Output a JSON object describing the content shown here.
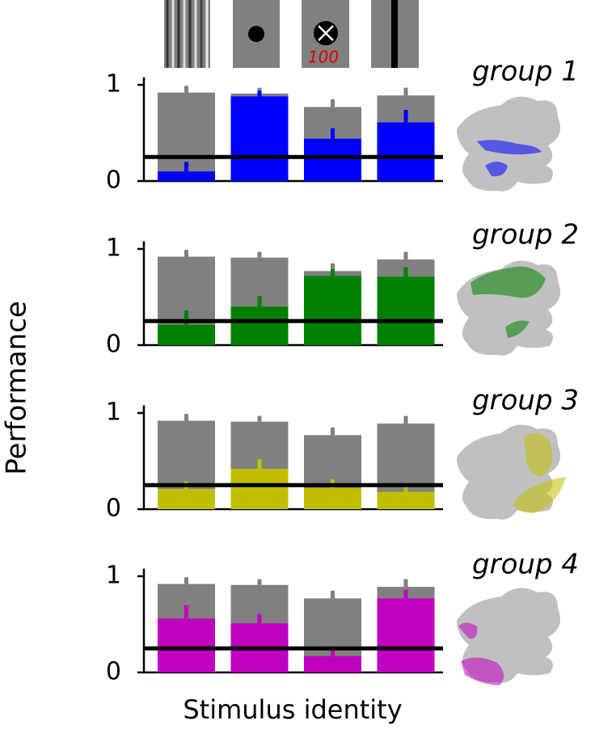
{
  "ylabel": "Performance",
  "xlabel": "Stimulus identity",
  "stimulus_label": "100",
  "chart_data": [
    {
      "type": "bar",
      "title": "group 1",
      "categories": [
        null,
        null,
        null,
        null
      ],
      "ylim": [
        0,
        1.08
      ],
      "yticks": [
        0,
        1
      ],
      "hline": 0.25,
      "series": [
        {
          "color": "#808080",
          "values": [
            0.92,
            0.91,
            0.77,
            0.89
          ],
          "errors": [
            0.07,
            0.06,
            0.08,
            0.08
          ]
        },
        {
          "color": "#0000ff",
          "values": [
            0.1,
            0.88,
            0.44,
            0.61
          ],
          "errors": [
            0.1,
            0.06,
            0.11,
            0.13
          ]
        }
      ]
    },
    {
      "type": "bar",
      "title": "group 2",
      "categories": [
        null,
        null,
        null,
        null
      ],
      "ylim": [
        0,
        1.08
      ],
      "yticks": [
        0,
        1
      ],
      "hline": 0.25,
      "series": [
        {
          "color": "#808080",
          "values": [
            0.92,
            0.91,
            0.77,
            0.89
          ],
          "errors": [
            0.07,
            0.06,
            0.08,
            0.08
          ]
        },
        {
          "color": "#008000",
          "values": [
            0.21,
            0.4,
            0.72,
            0.71
          ],
          "errors": [
            0.15,
            0.11,
            0.07,
            0.1
          ]
        }
      ]
    },
    {
      "type": "bar",
      "title": "group 3",
      "categories": [
        null,
        null,
        null,
        null
      ],
      "ylim": [
        0,
        1.08
      ],
      "yticks": [
        0,
        1
      ],
      "hline": 0.25,
      "series": [
        {
          "color": "#808080",
          "values": [
            0.92,
            0.91,
            0.77,
            0.89
          ],
          "errors": [
            0.07,
            0.06,
            0.08,
            0.08
          ]
        },
        {
          "color": "#bfbf00",
          "values": [
            0.21,
            0.42,
            0.22,
            0.18
          ],
          "errors": [
            0.08,
            0.1,
            0.09,
            0.05
          ]
        }
      ]
    },
    {
      "type": "bar",
      "title": "group 4",
      "categories": [
        null,
        null,
        null,
        null
      ],
      "ylim": [
        0,
        1.08
      ],
      "yticks": [
        0,
        1
      ],
      "hline": 0.25,
      "series": [
        {
          "color": "#808080",
          "values": [
            0.92,
            0.91,
            0.77,
            0.89
          ],
          "errors": [
            0.07,
            0.06,
            0.08,
            0.08
          ]
        },
        {
          "color": "#bf00bf",
          "values": [
            0.56,
            0.51,
            0.17,
            0.77
          ],
          "errors": [
            0.14,
            0.1,
            0.08,
            0.09
          ]
        }
      ]
    }
  ]
}
